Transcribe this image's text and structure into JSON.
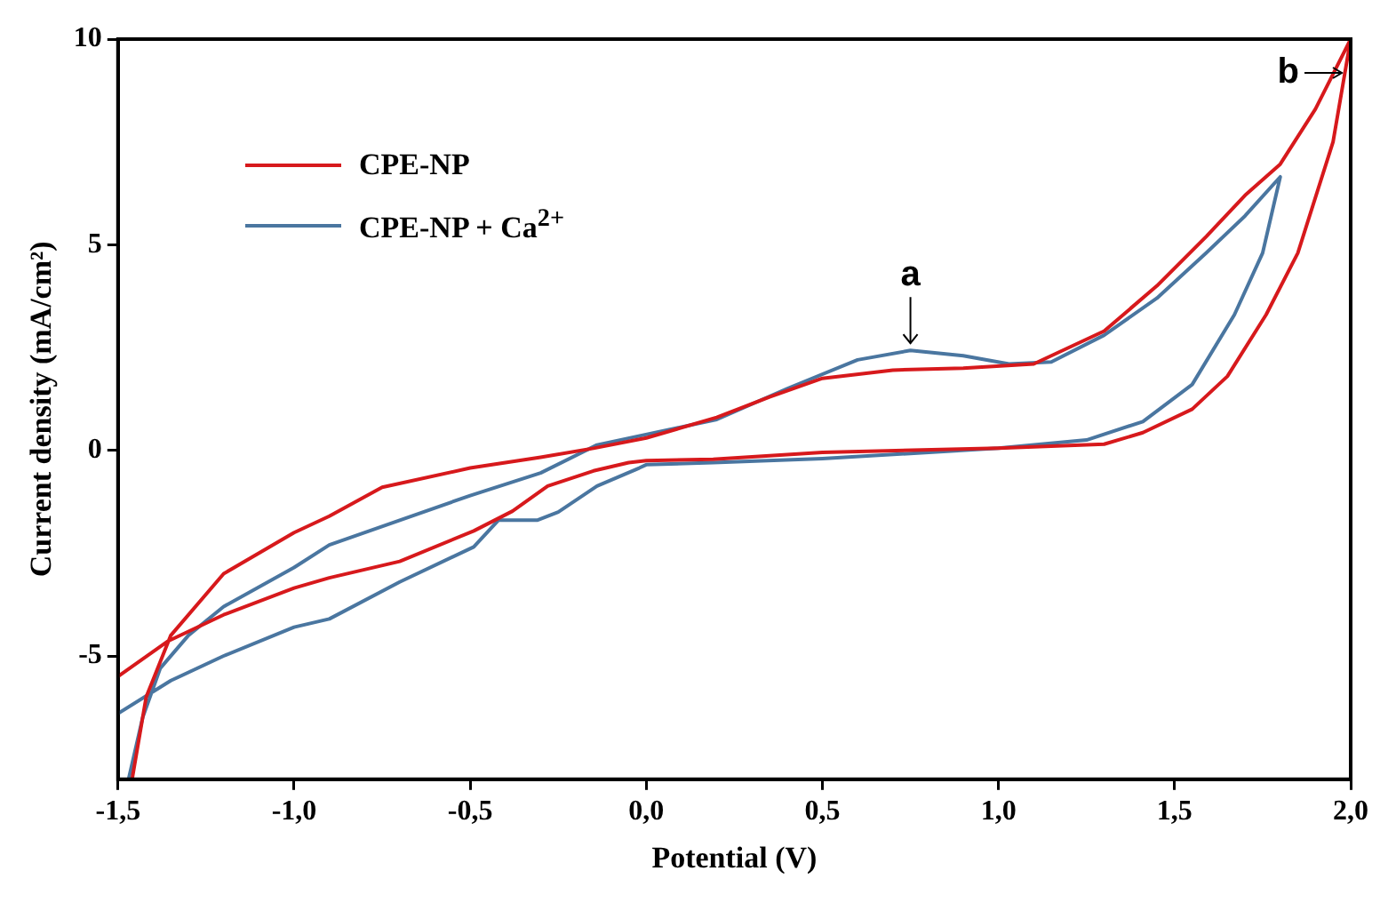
{
  "chart_data": {
    "type": "line",
    "xlabel": "Potential (V)",
    "ylabel": "Current density (mA/cm²)",
    "xlim": [
      -1.5,
      2.0
    ],
    "xticks": [
      {
        "value": -1.5,
        "label": "-1,5"
      },
      {
        "value": -1.0,
        "label": "-1,0"
      },
      {
        "value": -0.5,
        "label": "-0,5"
      },
      {
        "value": 0,
        "label": "0,0"
      },
      {
        "value": 0.5,
        "label": "0,5"
      },
      {
        "value": 1.0,
        "label": "1,0"
      },
      {
        "value": 1.5,
        "label": "1,5"
      },
      {
        "value": 2.0,
        "label": "2,0"
      }
    ],
    "ylim": [
      -8,
      10
    ],
    "yticks": [
      -5,
      0,
      5,
      10
    ],
    "grid": false,
    "legend": "top left",
    "marker": "none",
    "line_style": "solid",
    "series": [
      {
        "name": "CPE-NP",
        "color": "#d7191c",
        "x": [
          -1.46,
          -1.42,
          -1.35,
          -1.2,
          -1.0,
          -0.9,
          -0.75,
          -0.5,
          -0.3,
          -0.15,
          0.0,
          0.2,
          0.35,
          0.5,
          0.7,
          0.9,
          1.1,
          1.3,
          1.45,
          1.59,
          1.7,
          1.8,
          1.9,
          2.0,
          1.95,
          1.85,
          1.76,
          1.65,
          1.55,
          1.41,
          1.3,
          1.0,
          0.5,
          0.19,
          0.0,
          -0.05,
          -0.15,
          -0.28,
          -0.38,
          -0.49,
          -0.7,
          -0.9,
          -1.0,
          -1.2,
          -1.36,
          -1.5
        ],
        "values": [
          -8,
          -6,
          -4.5,
          -3,
          -2.0,
          -1.6,
          -0.9,
          -0.43,
          -0.17,
          0.05,
          0.3,
          0.8,
          1.3,
          1.75,
          1.95,
          2.0,
          2.1,
          2.9,
          4.0,
          5.2,
          6.2,
          6.96,
          8.3,
          10,
          7.5,
          4.8,
          3.3,
          1.8,
          1.0,
          0.43,
          0.15,
          0.05,
          -0.05,
          -0.22,
          -0.25,
          -0.3,
          -0.5,
          -0.87,
          -1.48,
          -1.96,
          -2.7,
          -3.1,
          -3.35,
          -4.0,
          -4.65,
          -5.5
        ]
      },
      {
        "name": "CPE-NP + Ca$^{2+}$",
        "color": "#4a76a0",
        "x": [
          -1.47,
          -1.43,
          -1.38,
          -1.3,
          -1.2,
          -1.0,
          -0.9,
          -0.7,
          -0.5,
          -0.3,
          -0.14,
          0.2,
          0.4,
          0.6,
          0.75,
          0.9,
          1.03,
          1.15,
          1.3,
          1.45,
          1.59,
          1.7,
          1.8,
          1.75,
          1.67,
          1.55,
          1.41,
          1.25,
          1.0,
          0.5,
          0.19,
          0.0,
          -0.02,
          -0.14,
          -0.25,
          -0.31,
          -0.42,
          -0.49,
          -0.7,
          -0.9,
          -1.0,
          -1.2,
          -1.35,
          -1.5
        ],
        "values": [
          -8,
          -6.5,
          -5.3,
          -4.5,
          -3.8,
          -2.85,
          -2.3,
          -1.7,
          -1.1,
          -0.55,
          0.13,
          0.75,
          1.5,
          2.2,
          2.43,
          2.3,
          2.1,
          2.15,
          2.8,
          3.7,
          4.8,
          5.7,
          6.65,
          4.8,
          3.3,
          1.6,
          0.7,
          0.25,
          0.05,
          -0.2,
          -0.3,
          -0.35,
          -0.43,
          -0.87,
          -1.5,
          -1.7,
          -1.7,
          -2.35,
          -3.2,
          -4.1,
          -4.3,
          -5.0,
          -5.6,
          -6.4
        ]
      }
    ],
    "annotations": [
      {
        "text": "a",
        "x": 0.75,
        "y": 2.43
      },
      {
        "text": "b",
        "x": 2.0,
        "y": 10
      }
    ]
  }
}
